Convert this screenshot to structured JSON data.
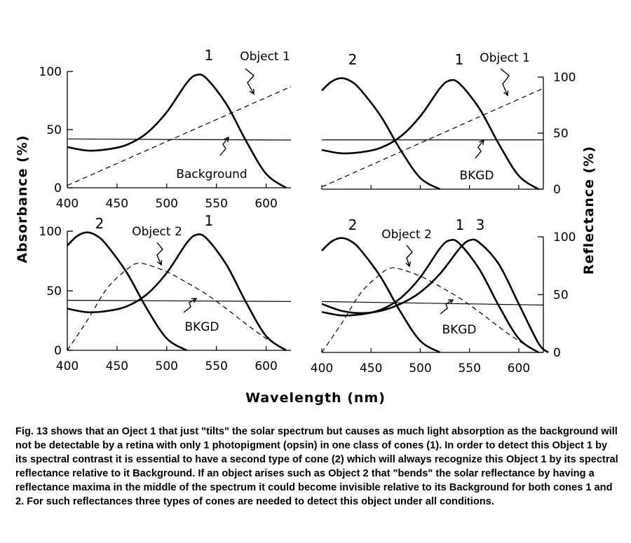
{
  "figure": {
    "xlabel": "Wavelength (nm)",
    "ylabel_left": "Absorbance (%)",
    "ylabel_right": "Reflectance (%)",
    "curve_names": {
      "cone1": "1",
      "cone2": "2",
      "cone3": "3"
    },
    "annotations": {
      "object1": "Object 1",
      "object2": "Object 2",
      "background": "Background",
      "bkgd": "BKGD"
    }
  },
  "chart_data": [
    {
      "type": "line",
      "panel": "top-left",
      "x_ticks": [
        "400",
        "450",
        "500",
        "550",
        "600"
      ],
      "y_ticks_left": [
        "0",
        "50",
        "100"
      ],
      "xlim": [
        400,
        625
      ],
      "ylim": [
        0,
        100
      ],
      "series": [
        {
          "name": "1",
          "style": "solid",
          "x": [
            400,
            420,
            440,
            460,
            480,
            500,
            520,
            530,
            540,
            560,
            580,
            600,
            620
          ],
          "y": [
            35,
            32,
            33,
            37,
            47,
            65,
            90,
            97,
            94,
            72,
            40,
            12,
            0
          ]
        },
        {
          "name": "Object 1",
          "style": "dashed",
          "x": [
            400,
            625
          ],
          "y": [
            2,
            87
          ]
        },
        {
          "name": "Background",
          "style": "solid",
          "x": [
            400,
            625
          ],
          "y": [
            42,
            41
          ]
        }
      ]
    },
    {
      "type": "line",
      "panel": "top-right",
      "y_ticks_right": [
        "0",
        "50",
        "100"
      ],
      "xlim": [
        400,
        625
      ],
      "ylim": [
        0,
        100
      ],
      "series": [
        {
          "name": "2",
          "style": "solid",
          "x": [
            400,
            410,
            420,
            430,
            440,
            460,
            480,
            500,
            520
          ],
          "y": [
            88,
            96,
            99,
            96,
            88,
            65,
            35,
            10,
            0
          ]
        },
        {
          "name": "1",
          "style": "solid",
          "x": [
            400,
            420,
            440,
            460,
            480,
            500,
            520,
            530,
            540,
            560,
            580,
            600,
            620
          ],
          "y": [
            35,
            32,
            33,
            37,
            47,
            65,
            90,
            97,
            94,
            72,
            40,
            12,
            0
          ]
        },
        {
          "name": "Object 1",
          "style": "dashed",
          "x": [
            400,
            625
          ],
          "y": [
            2,
            90
          ]
        },
        {
          "name": "BKGD",
          "style": "solid",
          "x": [
            400,
            625
          ],
          "y": [
            44,
            44
          ]
        }
      ]
    },
    {
      "type": "line",
      "panel": "bottom-left",
      "x_ticks": [
        "400",
        "450",
        "500",
        "550",
        "600"
      ],
      "y_ticks_left": [
        "0",
        "50",
        "100"
      ],
      "xlim": [
        400,
        625
      ],
      "ylim": [
        0,
        100
      ],
      "series": [
        {
          "name": "2",
          "style": "solid",
          "x": [
            400,
            410,
            420,
            430,
            440,
            460,
            480,
            500,
            520
          ],
          "y": [
            88,
            96,
            99,
            96,
            88,
            65,
            35,
            10,
            0
          ]
        },
        {
          "name": "1",
          "style": "solid",
          "x": [
            400,
            420,
            440,
            460,
            480,
            500,
            520,
            530,
            540,
            560,
            580,
            600,
            620
          ],
          "y": [
            35,
            32,
            33,
            37,
            47,
            65,
            90,
            97,
            94,
            72,
            40,
            12,
            0
          ]
        },
        {
          "name": "Object 2",
          "style": "dashed",
          "x": [
            400,
            420,
            440,
            460,
            470,
            480,
            500,
            520,
            540,
            560,
            580,
            600,
            620
          ],
          "y": [
            0,
            25,
            52,
            68,
            73,
            72,
            66,
            57,
            47,
            35,
            22,
            10,
            0
          ]
        },
        {
          "name": "BKGD",
          "style": "solid",
          "x": [
            400,
            625
          ],
          "y": [
            42,
            41
          ]
        }
      ]
    },
    {
      "type": "line",
      "panel": "bottom-right",
      "x_ticks": [
        "400",
        "450",
        "500",
        "550",
        "600"
      ],
      "y_ticks_right": [
        "0",
        "50",
        "100"
      ],
      "xlim": [
        400,
        625
      ],
      "ylim": [
        0,
        100
      ],
      "series": [
        {
          "name": "2",
          "style": "solid",
          "x": [
            400,
            410,
            420,
            430,
            440,
            460,
            480,
            500,
            520
          ],
          "y": [
            88,
            96,
            99,
            96,
            88,
            65,
            35,
            10,
            0
          ]
        },
        {
          "name": "1",
          "style": "solid",
          "x": [
            400,
            420,
            440,
            460,
            480,
            500,
            520,
            530,
            540,
            560,
            580,
            600,
            620
          ],
          "y": [
            35,
            32,
            33,
            37,
            47,
            65,
            90,
            97,
            94,
            72,
            40,
            12,
            0
          ]
        },
        {
          "name": "3",
          "style": "solid",
          "x": [
            400,
            420,
            440,
            460,
            480,
            500,
            520,
            540,
            550,
            560,
            580,
            600,
            620,
            630
          ],
          "y": [
            42,
            36,
            34,
            36,
            42,
            52,
            68,
            90,
            97,
            95,
            76,
            42,
            8,
            0
          ]
        },
        {
          "name": "Object 2",
          "style": "dashed",
          "x": [
            400,
            420,
            440,
            460,
            470,
            480,
            500,
            520,
            540,
            560,
            580,
            600,
            620
          ],
          "y": [
            0,
            25,
            52,
            68,
            73,
            72,
            66,
            57,
            47,
            35,
            22,
            10,
            0
          ]
        },
        {
          "name": "BKGD",
          "style": "solid",
          "x": [
            400,
            625
          ],
          "y": [
            44,
            41
          ]
        }
      ]
    }
  ],
  "caption": "Fig. 13 shows that an Oject 1 that just \"tilts\" the solar spectrum but causes as much light absorption as the background will not be detectable by a retina with only 1 photopigment (opsin) in one class of cones (1). In order to detect this Object 1 by its spectral contrast it is essential to have a second type of cone (2) which will always recognize this Object 1 by its spectral reflectance relative to it Background. If an object arises such as Object 2 that \"bends\" the solar reflectance by having a reflectance maxima in the middle of the spectrum it could become invisible relative to its Background for both cones 1 and 2. For such reflectances three types of cones are needed to detect this object under all conditions."
}
